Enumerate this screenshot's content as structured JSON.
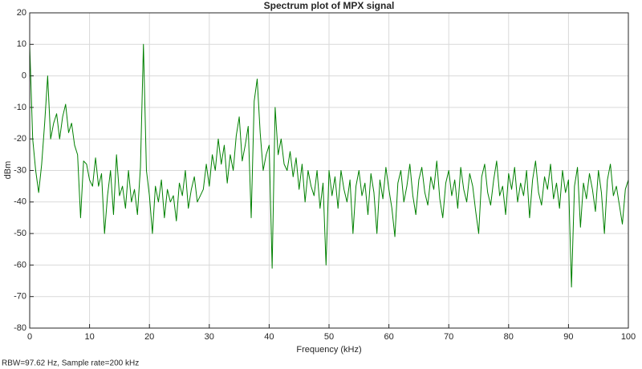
{
  "chart_data": {
    "type": "line",
    "title": "Spectrum plot of MPX signal",
    "x_label": "Frequency (kHz)",
    "y_label": "dBm",
    "footnote": "RBW=97.62 Hz, Sample rate=200 kHz",
    "grid": true,
    "xlim": [
      0,
      100
    ],
    "ylim": [
      -80,
      20
    ],
    "xticks": [
      0,
      10,
      20,
      30,
      40,
      50,
      60,
      70,
      80,
      90,
      100
    ],
    "yticks": [
      -80,
      -70,
      -60,
      -50,
      -40,
      -30,
      -20,
      -10,
      0,
      10,
      20
    ],
    "x": [
      0,
      0.5,
      1,
      1.5,
      2,
      2.5,
      3,
      3.5,
      4,
      4.5,
      5,
      5.5,
      6,
      6.5,
      7,
      7.5,
      8,
      8.5,
      9,
      9.5,
      10,
      10.5,
      11,
      11.5,
      12,
      12.5,
      13,
      13.5,
      14,
      14.5,
      15,
      15.5,
      16,
      16.5,
      17,
      17.5,
      18,
      18.5,
      19,
      19.5,
      20,
      20.5,
      21,
      21.5,
      22,
      22.5,
      23,
      23.5,
      24,
      24.5,
      25,
      25.5,
      26,
      26.5,
      27,
      27.5,
      28,
      28.5,
      29,
      29.5,
      30,
      30.5,
      31,
      31.5,
      32,
      32.5,
      33,
      33.5,
      34,
      34.5,
      35,
      35.5,
      36,
      36.5,
      37,
      37.5,
      38,
      38.5,
      39,
      39.5,
      40,
      40.5,
      41,
      41.5,
      42,
      42.5,
      43,
      43.5,
      44,
      44.5,
      45,
      45.5,
      46,
      46.5,
      47,
      47.5,
      48,
      48.5,
      49,
      49.5,
      50,
      50.5,
      51,
      51.5,
      52,
      52.5,
      53,
      53.5,
      54,
      54.5,
      55,
      55.5,
      56,
      56.5,
      57,
      57.5,
      58,
      58.5,
      59,
      59.5,
      60,
      60.5,
      61,
      61.5,
      62,
      62.5,
      63,
      63.5,
      64,
      64.5,
      65,
      65.5,
      66,
      66.5,
      67,
      67.5,
      68,
      68.5,
      69,
      69.5,
      70,
      70.5,
      71,
      71.5,
      72,
      72.5,
      73,
      73.5,
      74,
      74.5,
      75,
      75.5,
      76,
      76.5,
      77,
      77.5,
      78,
      78.5,
      79,
      79.5,
      80,
      80.5,
      81,
      81.5,
      82,
      82.5,
      83,
      83.5,
      84,
      84.5,
      85,
      85.5,
      86,
      86.5,
      87,
      87.5,
      88,
      88.5,
      89,
      89.5,
      90,
      90.5,
      91,
      91.5,
      92,
      92.5,
      93,
      93.5,
      94,
      94.5,
      95,
      95.5,
      96,
      96.5,
      97,
      97.5,
      98,
      98.5,
      99,
      99.5,
      100
    ],
    "series": [
      {
        "color": "#008000",
        "values": [
          10,
          -20,
          -30,
          -37,
          -28,
          -15,
          0,
          -20,
          -15,
          -12,
          -20,
          -13,
          -9,
          -18,
          -15,
          -22,
          -25,
          -45,
          -27,
          -28,
          -33,
          -35,
          -26,
          -35,
          -31,
          -50,
          -38,
          -30,
          -44,
          -25,
          -38,
          -35,
          -42,
          -30,
          -40,
          -36,
          -44,
          -29,
          10,
          -30,
          -38,
          -50,
          -35,
          -40,
          -33,
          -45,
          -36,
          -40,
          -38,
          -46,
          -34,
          -38,
          -30,
          -42,
          -36,
          -32,
          -40,
          -38,
          -36,
          -28,
          -35,
          -25,
          -30,
          -20,
          -28,
          -22,
          -34,
          -25,
          -30,
          -19,
          -13,
          -27,
          -22,
          -16,
          -45,
          -8,
          -1,
          -18,
          -30,
          -25,
          -22,
          -61,
          -10,
          -25,
          -20,
          -28,
          -30,
          -24,
          -32,
          -26,
          -36,
          -28,
          -40,
          -30,
          -35,
          -38,
          -30,
          -42,
          -34,
          -60,
          -30,
          -38,
          -32,
          -42,
          -30,
          -36,
          -40,
          -33,
          -50,
          -35,
          -30,
          -38,
          -34,
          -44,
          -31,
          -37,
          -50,
          -33,
          -39,
          -29,
          -36,
          -42,
          -51,
          -34,
          -30,
          -40,
          -35,
          -28,
          -38,
          -44,
          -33,
          -29,
          -37,
          -41,
          -32,
          -36,
          -27,
          -39,
          -45,
          -34,
          -30,
          -38,
          -33,
          -42,
          -29,
          -36,
          -40,
          -31,
          -35,
          -43,
          -50,
          -32,
          -28,
          -37,
          -41,
          -33,
          -27,
          -38,
          -35,
          -44,
          -31,
          -36,
          -29,
          -40,
          -34,
          -38,
          -30,
          -45,
          -33,
          -27,
          -37,
          -41,
          -32,
          -36,
          -28,
          -39,
          -34,
          -42,
          -30,
          -37,
          -33,
          -67,
          -35,
          -29,
          -48,
          -34,
          -39,
          -31,
          -36,
          -43,
          -30,
          -37,
          -50,
          -33,
          -28,
          -38,
          -35,
          -41,
          -47,
          -36,
          -33
        ]
      }
    ]
  }
}
